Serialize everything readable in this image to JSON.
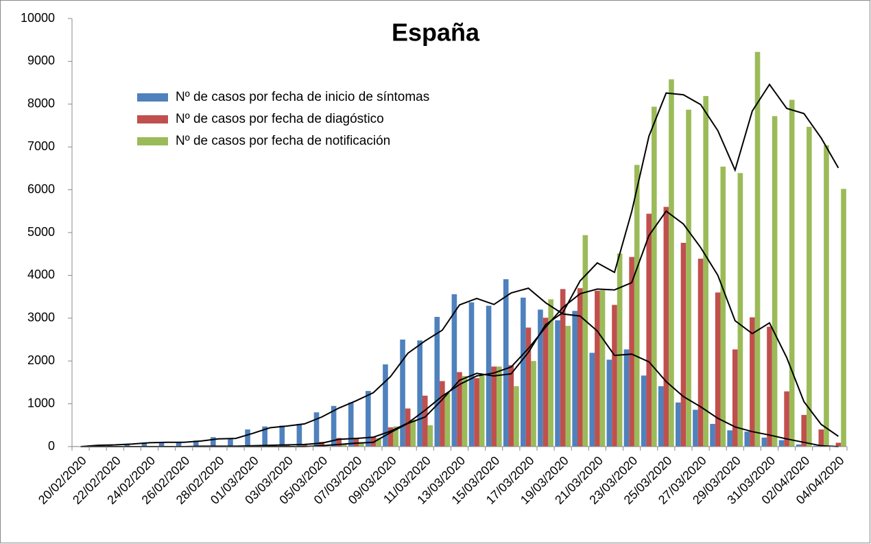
{
  "chart_data": {
    "type": "bar",
    "title": "España",
    "categories": [
      "20/02/2020",
      null,
      "22/02/2020",
      null,
      "24/02/2020",
      null,
      "26/02/2020",
      null,
      "28/02/2020",
      null,
      "01/03/2020",
      null,
      "03/03/2020",
      null,
      "05/03/2020",
      null,
      "07/03/2020",
      null,
      "09/03/2020",
      null,
      "11/03/2020",
      null,
      "13/03/2020",
      null,
      "15/03/2020",
      null,
      "17/03/2020",
      null,
      "19/03/2020",
      null,
      "21/03/2020",
      null,
      "23/03/2020",
      null,
      "25/03/2020",
      null,
      "27/03/2020",
      null,
      "29/03/2020",
      null,
      "31/03/2020",
      null,
      "02/04/2020",
      null,
      "04/04/2020"
    ],
    "series": [
      {
        "name": "Nº de casos por fecha de inicio de síntomas",
        "color": "#4f81bd",
        "values": [
          10,
          20,
          30,
          60,
          90,
          100,
          110,
          140,
          220,
          200,
          400,
          470,
          490,
          530,
          800,
          950,
          1030,
          1300,
          1920,
          2500,
          2480,
          3030,
          3560,
          3370,
          3290,
          3910,
          3480,
          3200,
          2950,
          3170,
          2190,
          2030,
          2270,
          1660,
          1410,
          1030,
          860,
          530,
          380,
          350,
          210,
          150,
          50,
          20,
          5
        ]
      },
      {
        "name": "Nº de casos por fecha de diagóstico",
        "color": "#c0504d",
        "values": [
          0,
          0,
          0,
          0,
          0,
          0,
          0,
          5,
          5,
          10,
          20,
          30,
          40,
          50,
          110,
          200,
          190,
          230,
          450,
          890,
          1190,
          1530,
          1740,
          1600,
          1870,
          1900,
          2780,
          3010,
          3680,
          3700,
          3640,
          3310,
          4430,
          5440,
          5600,
          4760,
          4390,
          3600,
          2270,
          3020,
          2800,
          1290,
          740,
          400,
          90
        ]
      },
      {
        "name": "Nº de casos por fecha de notificación",
        "color": "#9bbb59",
        "values": [
          0,
          0,
          0,
          0,
          0,
          0,
          0,
          0,
          0,
          0,
          0,
          0,
          0,
          0,
          10,
          50,
          100,
          200,
          470,
          630,
          500,
          1250,
          1650,
          1660,
          1870,
          1410,
          2000,
          3440,
          2820,
          4940,
          3650,
          4510,
          6580,
          7940,
          8580,
          7870,
          8190,
          6540,
          6390,
          9220,
          7720,
          8100,
          7470,
          7040,
          6020
        ]
      }
    ],
    "trend_lines": [
      {
        "color": "#000000",
        "values": [
          0,
          30,
          40,
          60,
          90,
          100,
          100,
          130,
          180,
          190,
          310,
          440,
          480,
          530,
          690,
          900,
          1070,
          1260,
          1640,
          2180,
          2470,
          2720,
          3310,
          3460,
          3320,
          3590,
          3700,
          3360,
          3100,
          3050,
          2700,
          2130,
          2160,
          1980,
          1520,
          1170,
          930,
          660,
          460,
          350,
          270,
          180,
          100,
          20,
          0
        ]
      },
      {
        "color": "#000000",
        "values": [
          0,
          0,
          0,
          0,
          0,
          0,
          0,
          10,
          10,
          10,
          20,
          30,
          40,
          50,
          80,
          170,
          190,
          220,
          360,
          550,
          850,
          1180,
          1450,
          1650,
          1720,
          1860,
          2290,
          2790,
          3250,
          3570,
          3680,
          3660,
          3830,
          4930,
          5500,
          5200,
          4650,
          4000,
          2940,
          2640,
          2890,
          2080,
          1050,
          520,
          240
        ]
      },
      {
        "color": "#000000",
        "values": [
          0,
          0,
          0,
          0,
          0,
          0,
          0,
          0,
          0,
          0,
          0,
          0,
          0,
          0,
          20,
          50,
          80,
          100,
          330,
          540,
          690,
          1100,
          1550,
          1710,
          1650,
          1700,
          2200,
          2850,
          3130,
          3870,
          4290,
          4070,
          5490,
          7250,
          8260,
          8220,
          7990,
          7380,
          6460,
          7840,
          8460,
          7900,
          7780,
          7210,
          6510
        ]
      }
    ],
    "ylim": [
      0,
      10000
    ],
    "yticks": [
      0,
      1000,
      2000,
      3000,
      4000,
      5000,
      6000,
      7000,
      8000,
      9000,
      10000
    ],
    "legend": "upper left",
    "grid": false
  }
}
